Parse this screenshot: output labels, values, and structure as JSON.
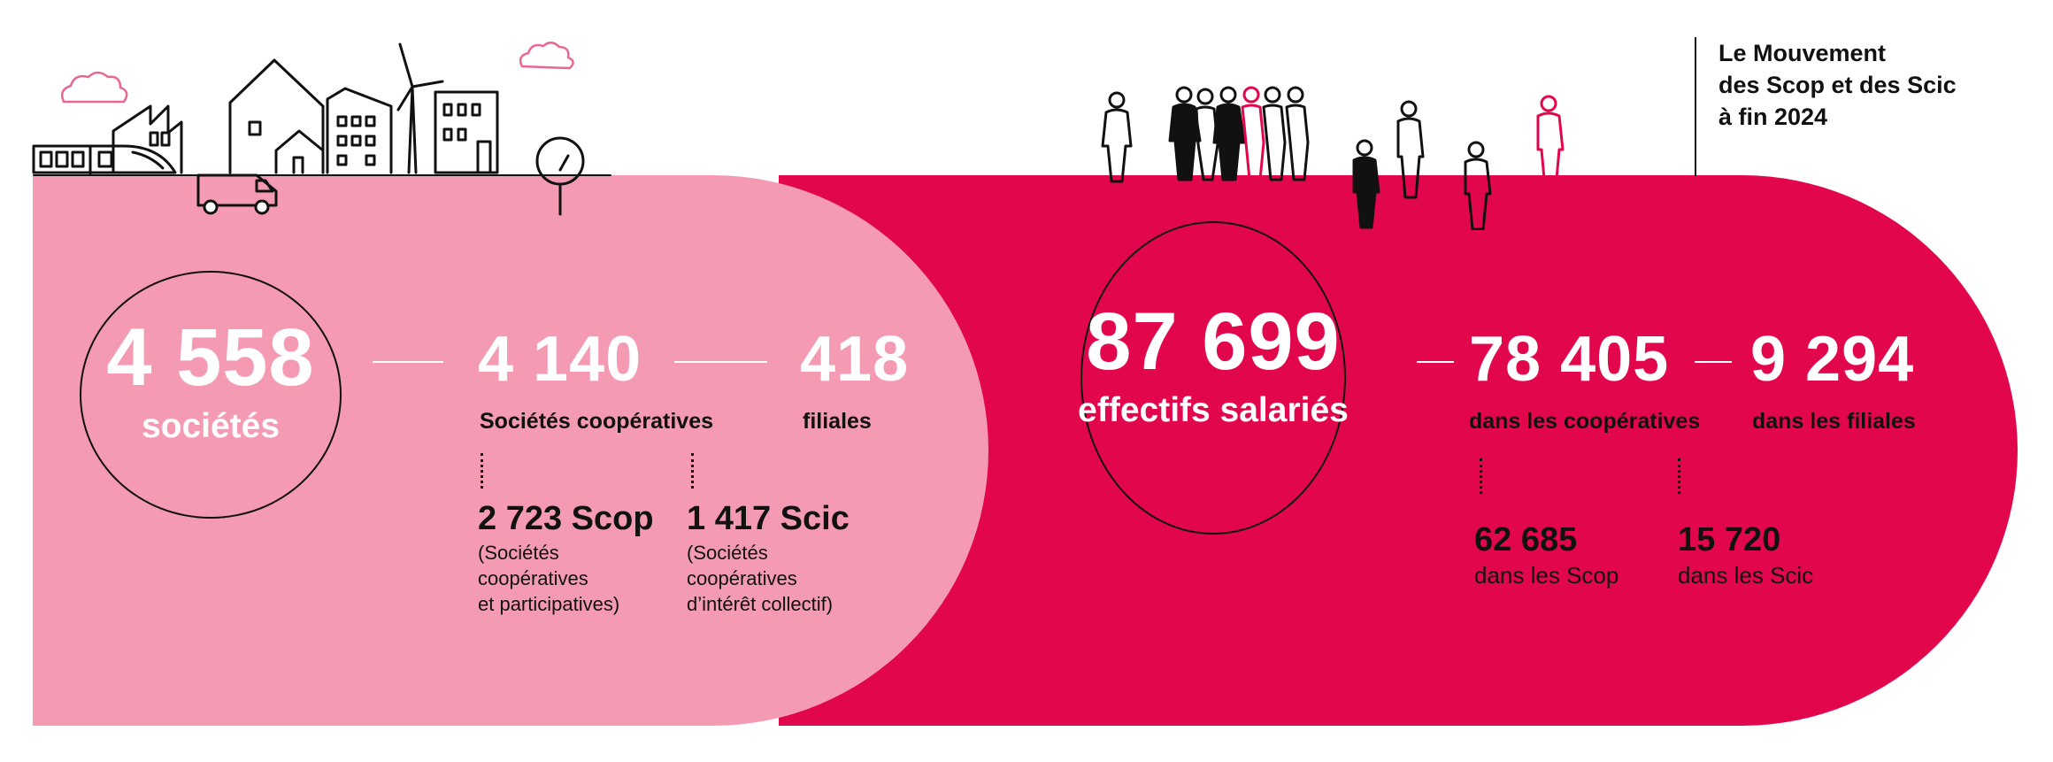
{
  "title": {
    "lines": [
      "Le Mouvement",
      "des Scop et des Scic",
      "à fin 2024"
    ]
  },
  "companies": {
    "total": {
      "value": "4 558",
      "label": "sociétés"
    },
    "cooperatives": {
      "value": "4 140",
      "label": "Sociétés coopératives"
    },
    "subsidiaries": {
      "value": "418",
      "label": "filiales"
    },
    "scop": {
      "value": "2 723 Scop",
      "desc": [
        "(Sociétés",
        "coopératives",
        "et participatives)"
      ]
    },
    "scic": {
      "value": "1 417 Scic",
      "desc": [
        "(Sociétés",
        "coopératives",
        "d’intérêt collectif)"
      ]
    }
  },
  "employees": {
    "total": {
      "value": "87 699",
      "label": "effectifs salariés"
    },
    "cooperatives": {
      "value": "78 405",
      "label": "dans les coopératives"
    },
    "subsidiaries": {
      "value": "9 294",
      "label": "dans les filiales"
    },
    "scop": {
      "value": "62 685",
      "label": "dans les Scop"
    },
    "scic": {
      "value": "15 720",
      "label": "dans les Scic"
    }
  },
  "colors": {
    "pink_band": "#f49ab3",
    "red_band": "#e2074c",
    "ink": "#111111",
    "white": "#ffffff"
  },
  "icons": [
    "town-illustration-icon",
    "cloud-icon",
    "wind-turbine-icon",
    "train-icon",
    "van-icon",
    "tree-icon",
    "people-illustration-icon"
  ]
}
